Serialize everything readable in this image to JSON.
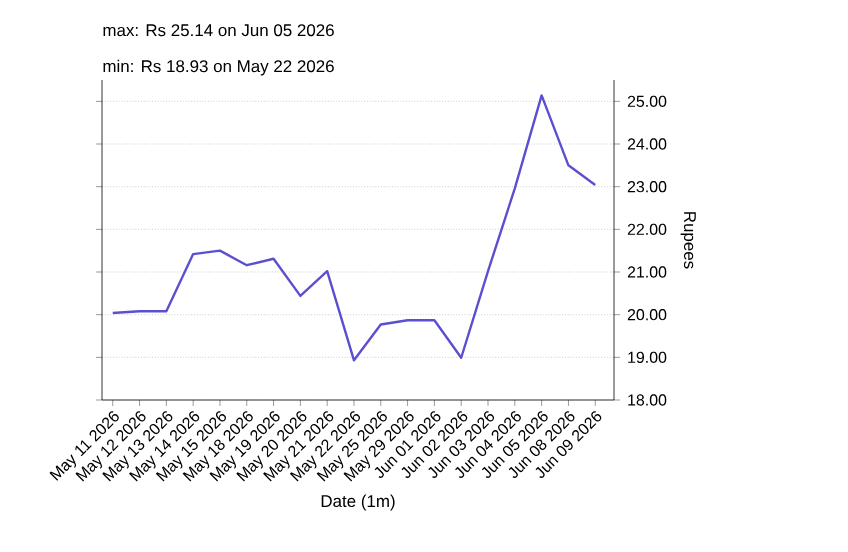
{
  "chart_data": {
    "type": "line",
    "title": "max: Rs 25.14 on Jun 05 2026",
    "subtitle": "min: Rs 18.93 on May 22 2026",
    "xlabel": "Date (1m)",
    "ylabel": "Rupees",
    "categories": [
      "May 11 2026",
      "May 12 2026",
      "May 13 2026",
      "May 14 2026",
      "May 15 2026",
      "May 18 2026",
      "May 19 2026",
      "May 20 2026",
      "May 21 2026",
      "May 22 2026",
      "May 25 2026",
      "May 29 2026",
      "Jun 01 2026",
      "Jun 02 2026",
      "Jun 03 2026",
      "Jun 04 2026",
      "Jun 05 2026",
      "Jun 08 2026",
      "Jun 09 2026"
    ],
    "series": [
      {
        "color": "#5b4fd0",
        "values": [
          20.04,
          20.08,
          20.08,
          21.42,
          21.5,
          21.16,
          21.31,
          20.44,
          21.02,
          18.93,
          19.77,
          19.87,
          19.87,
          18.99,
          21.02,
          22.96,
          25.14,
          23.5,
          23.04
        ]
      }
    ],
    "ylim": [
      18,
      25.5
    ],
    "yticks": [
      {
        "value": 18,
        "label": "18.00"
      },
      {
        "value": 19,
        "label": "19.00"
      },
      {
        "value": 20,
        "label": "20.00"
      },
      {
        "value": 21,
        "label": "21.00"
      },
      {
        "value": 22,
        "label": "22.00"
      },
      {
        "value": 23,
        "label": "23.00"
      },
      {
        "value": 24,
        "label": "24.00"
      },
      {
        "value": 25,
        "label": "25.00"
      }
    ],
    "grid": "y",
    "marker": "none",
    "line_style": "solid"
  }
}
